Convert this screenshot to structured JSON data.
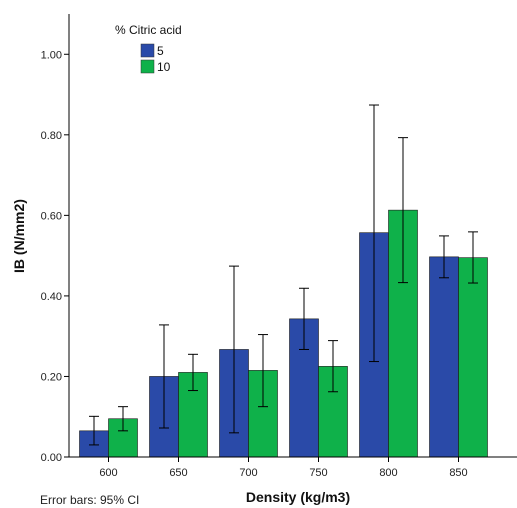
{
  "chart_data": {
    "type": "bar",
    "categories": [
      "600",
      "650",
      "700",
      "750",
      "800",
      "850"
    ],
    "series": [
      {
        "name": "5",
        "color": "#2a4aa8",
        "values": [
          0.065,
          0.2,
          0.267,
          0.343,
          0.557,
          0.497
        ],
        "ci_low": [
          0.03,
          0.072,
          0.06,
          0.267,
          0.237,
          0.445
        ],
        "ci_high": [
          0.101,
          0.328,
          0.474,
          0.419,
          0.874,
          0.549
        ]
      },
      {
        "name": "10",
        "color": "#0fb14a",
        "values": [
          0.095,
          0.21,
          0.215,
          0.225,
          0.613,
          0.495
        ],
        "ci_low": [
          0.065,
          0.165,
          0.125,
          0.162,
          0.433,
          0.432
        ],
        "ci_high": [
          0.125,
          0.255,
          0.304,
          0.289,
          0.793,
          0.559
        ]
      }
    ],
    "title": "",
    "xlabel": "Density (kg/m3)",
    "ylabel": "IB (N/mm2)",
    "ylim": [
      0,
      1.1
    ],
    "yticks": [
      "0.00",
      "0.20",
      "0.40",
      "0.60",
      "0.80",
      "1.00"
    ],
    "ytick_values": [
      0,
      0.2,
      0.4,
      0.6,
      0.8,
      1.0
    ],
    "legend": {
      "title": "% Citric acid",
      "placement": "top-left"
    },
    "note": "Error bars: 95% CI",
    "grid": false
  }
}
